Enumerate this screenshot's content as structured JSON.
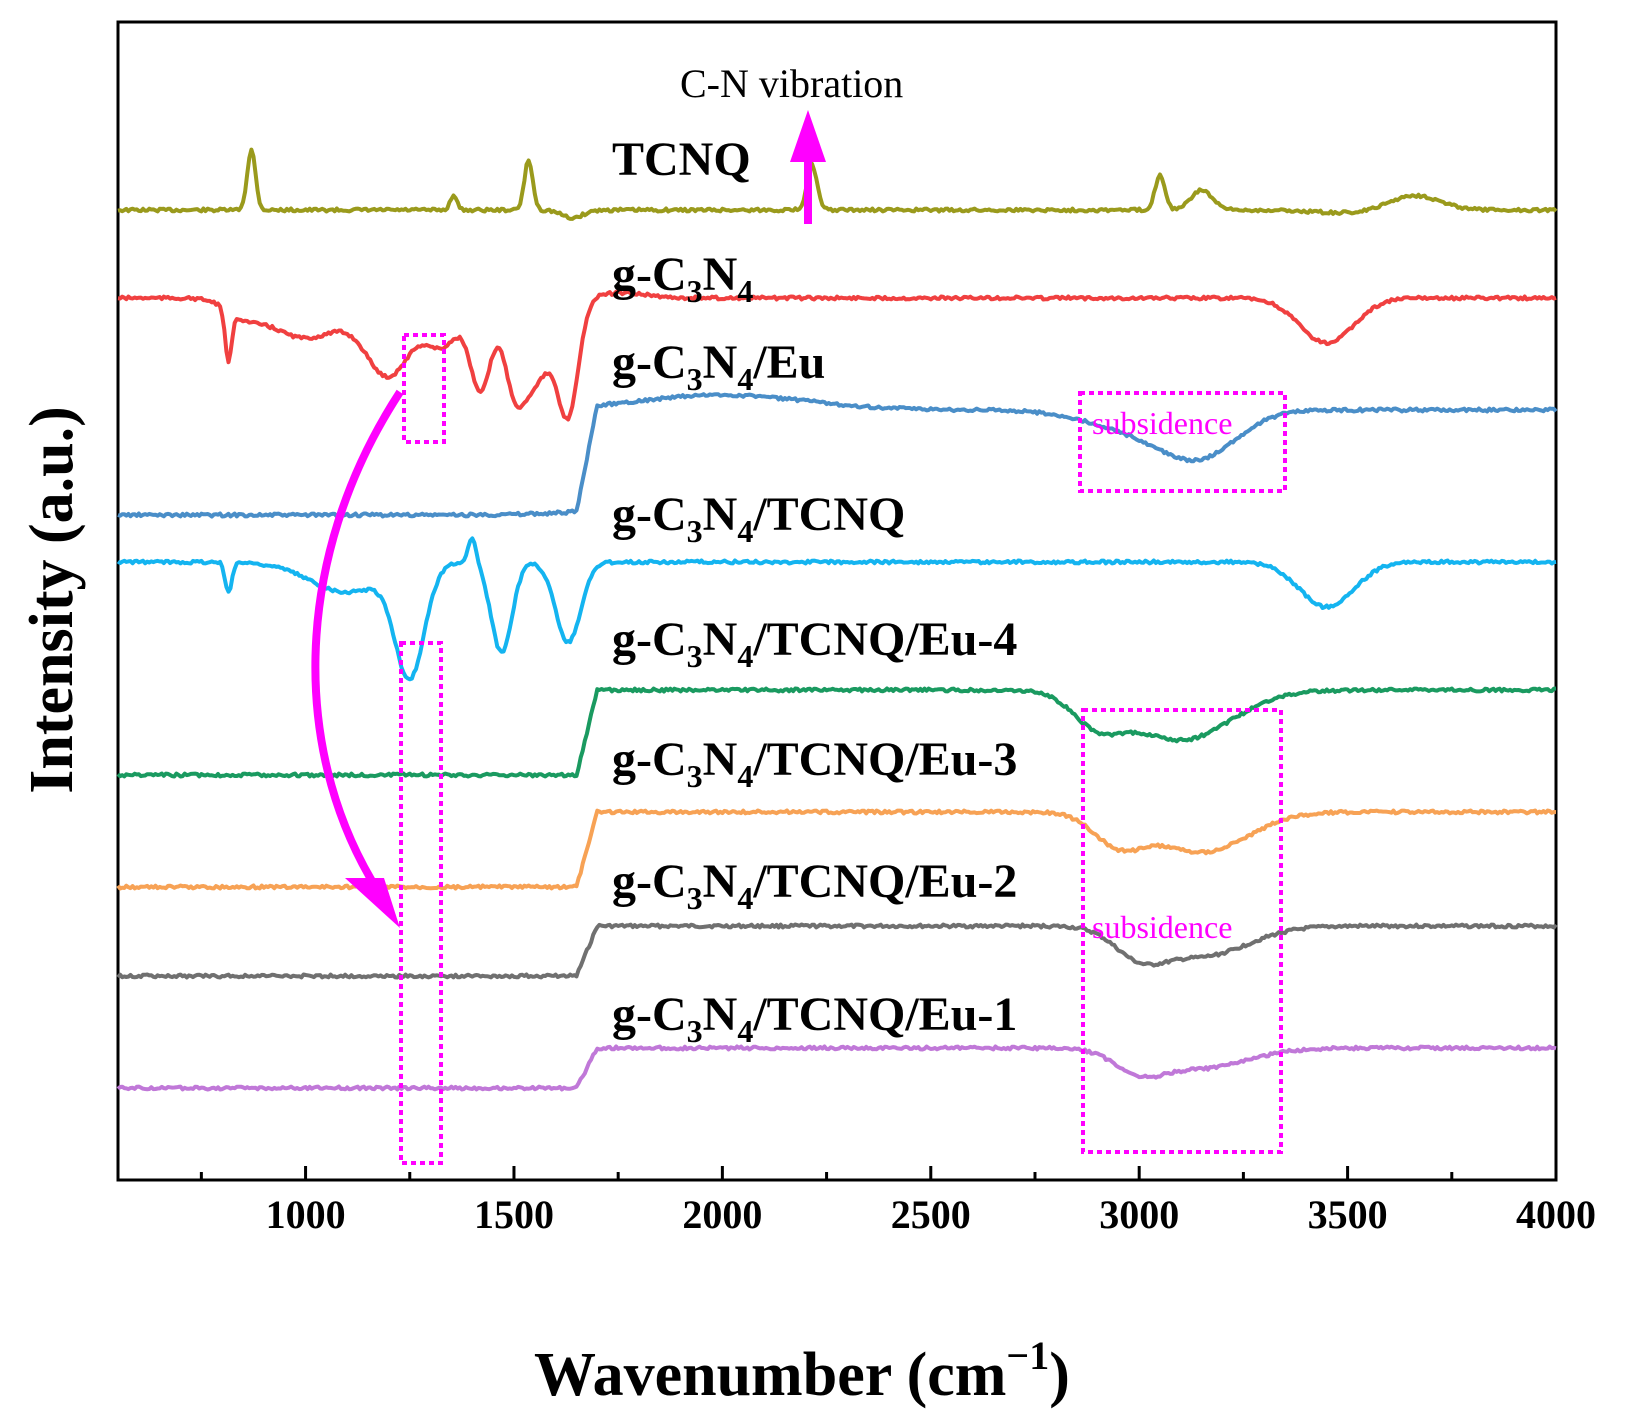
{
  "chart_data": {
    "type": "line",
    "title": "",
    "xlabel": "Wavenumber (cm",
    "xlabel_sup": "−1",
    "xlabel_close": ")",
    "ylabel": "Intensity (a.u.)",
    "xlim": [
      550,
      4000
    ],
    "x_ticks": [
      "1000",
      "1500",
      "2000",
      "2500",
      "3000",
      "3500",
      "4000"
    ],
    "grid": false,
    "series": [
      {
        "name": "TCNQ",
        "color": "#9a9a1c",
        "baseline": 210,
        "features": [
          [
            870,
            -60,
            10
          ],
          [
            1355,
            -15,
            8
          ],
          [
            1535,
            -50,
            10
          ],
          [
            1640,
            8,
            25
          ],
          [
            2215,
            -45,
            12
          ],
          [
            3050,
            -35,
            12
          ],
          [
            3150,
            -20,
            25
          ],
          [
            3500,
            3,
            80
          ],
          [
            3660,
            -15,
            60
          ]
        ]
      },
      {
        "name": "g-C3N4",
        "color": "#f04040",
        "baseline": 298,
        "features": [
          [
            850,
            12,
            40
          ],
          [
            1000,
            40,
            90
          ],
          [
            1200,
            75,
            55
          ],
          [
            1330,
            45,
            40
          ],
          [
            1420,
            90,
            25
          ],
          [
            1500,
            65,
            25
          ],
          [
            1630,
            110,
            25
          ],
          [
            1550,
            80,
            40
          ],
          [
            815,
            50,
            8
          ],
          [
            1760,
            -5,
            60
          ],
          [
            3450,
            45,
            65
          ]
        ]
      },
      {
        "name": "g-C3N4/Eu",
        "color": "#4a8ec8",
        "baseline": 410,
        "features": [
          [
            550,
            105,
            0
          ],
          [
            2000,
            -15,
            200
          ],
          [
            3000,
            20,
            120
          ],
          [
            3150,
            40,
            90
          ],
          [
            3600,
            0,
            80
          ]
        ]
      },
      {
        "name": "g-C3N4/TCNQ",
        "color": "#14b4f0",
        "baseline": 562,
        "features": [
          [
            815,
            30,
            8
          ],
          [
            1100,
            30,
            90
          ],
          [
            1250,
            110,
            35
          ],
          [
            1400,
            -25,
            10
          ],
          [
            1470,
            90,
            25
          ],
          [
            1630,
            80,
            30
          ],
          [
            3450,
            45,
            65
          ]
        ]
      },
      {
        "name": "g-C3N4/TCNQ/Eu-4",
        "color": "#1a9a60",
        "baseline": 690,
        "features": [
          [
            550,
            85,
            0
          ],
          [
            2900,
            30,
            60
          ],
          [
            3100,
            50,
            120
          ]
        ]
      },
      {
        "name": "g-C3N4/TCNQ/Eu-3",
        "color": "#f7a255",
        "baseline": 812,
        "features": [
          [
            550,
            75,
            0
          ],
          [
            2950,
            30,
            60
          ],
          [
            3150,
            40,
            110
          ]
        ]
      },
      {
        "name": "g-C3N4/TCNQ/Eu-2",
        "color": "#707070",
        "baseline": 926,
        "features": [
          [
            550,
            50,
            0
          ],
          [
            3000,
            25,
            60
          ],
          [
            3150,
            30,
            110
          ]
        ]
      },
      {
        "name": "g-C3N4/TCNQ/Eu-1",
        "color": "#c078d8",
        "baseline": 1048,
        "features": [
          [
            550,
            40,
            0
          ],
          [
            3000,
            20,
            60
          ],
          [
            3150,
            20,
            110
          ]
        ]
      }
    ],
    "labels": [
      {
        "main": "TCNQ",
        "parts": []
      },
      {
        "main": "g-C",
        "parts": [
          "3",
          "N",
          "4",
          ""
        ]
      },
      {
        "main": "g-C",
        "parts": [
          "3",
          "N",
          "4",
          "/Eu"
        ]
      },
      {
        "main": "g-C",
        "parts": [
          "3",
          "N",
          "4",
          "/TCNQ"
        ]
      },
      {
        "main": "g-C",
        "parts": [
          "3",
          "N",
          "4",
          "/TCNQ/Eu-4"
        ]
      },
      {
        "main": "g-C",
        "parts": [
          "3",
          "N",
          "4",
          "/TCNQ/Eu-3"
        ]
      },
      {
        "main": "g-C",
        "parts": [
          "3",
          "N",
          "4",
          "/TCNQ/Eu-2"
        ]
      },
      {
        "main": "g-C",
        "parts": [
          "3",
          "N",
          "4",
          "/TCNQ/Eu-1"
        ]
      }
    ],
    "annotations": {
      "cn_vibration": "C-N vibration",
      "subsidence_1": "subsidence",
      "subsidence_2": "subsidence"
    },
    "accent_color": "#ff00ff"
  }
}
